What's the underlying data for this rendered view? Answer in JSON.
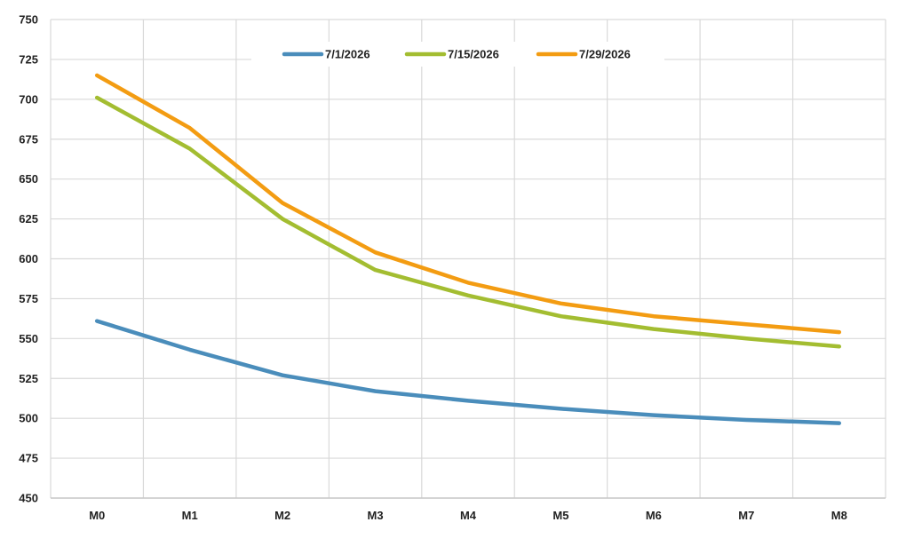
{
  "chart_data": {
    "type": "line",
    "title": "",
    "xlabel": "",
    "ylabel": "",
    "categories": [
      "M0",
      "M1",
      "M2",
      "M3",
      "M4",
      "M5",
      "M6",
      "M7",
      "M8"
    ],
    "ylim": [
      450,
      750
    ],
    "yticks": [
      450,
      475,
      500,
      525,
      550,
      575,
      600,
      625,
      650,
      675,
      700,
      725,
      750
    ],
    "grid": true,
    "legend_position": "top-center",
    "series": [
      {
        "name": "7/1/2026",
        "color": "#4a8dbb",
        "values": [
          561,
          543,
          527,
          517,
          511,
          506,
          502,
          499,
          497
        ]
      },
      {
        "name": "7/15/2026",
        "color": "#a3bd31",
        "values": [
          701,
          669,
          625,
          593,
          577,
          564,
          556,
          550,
          545
        ]
      },
      {
        "name": "7/29/2026",
        "color": "#f39c12",
        "values": [
          715,
          682,
          635,
          604,
          585,
          572,
          564,
          559,
          554
        ]
      }
    ]
  }
}
